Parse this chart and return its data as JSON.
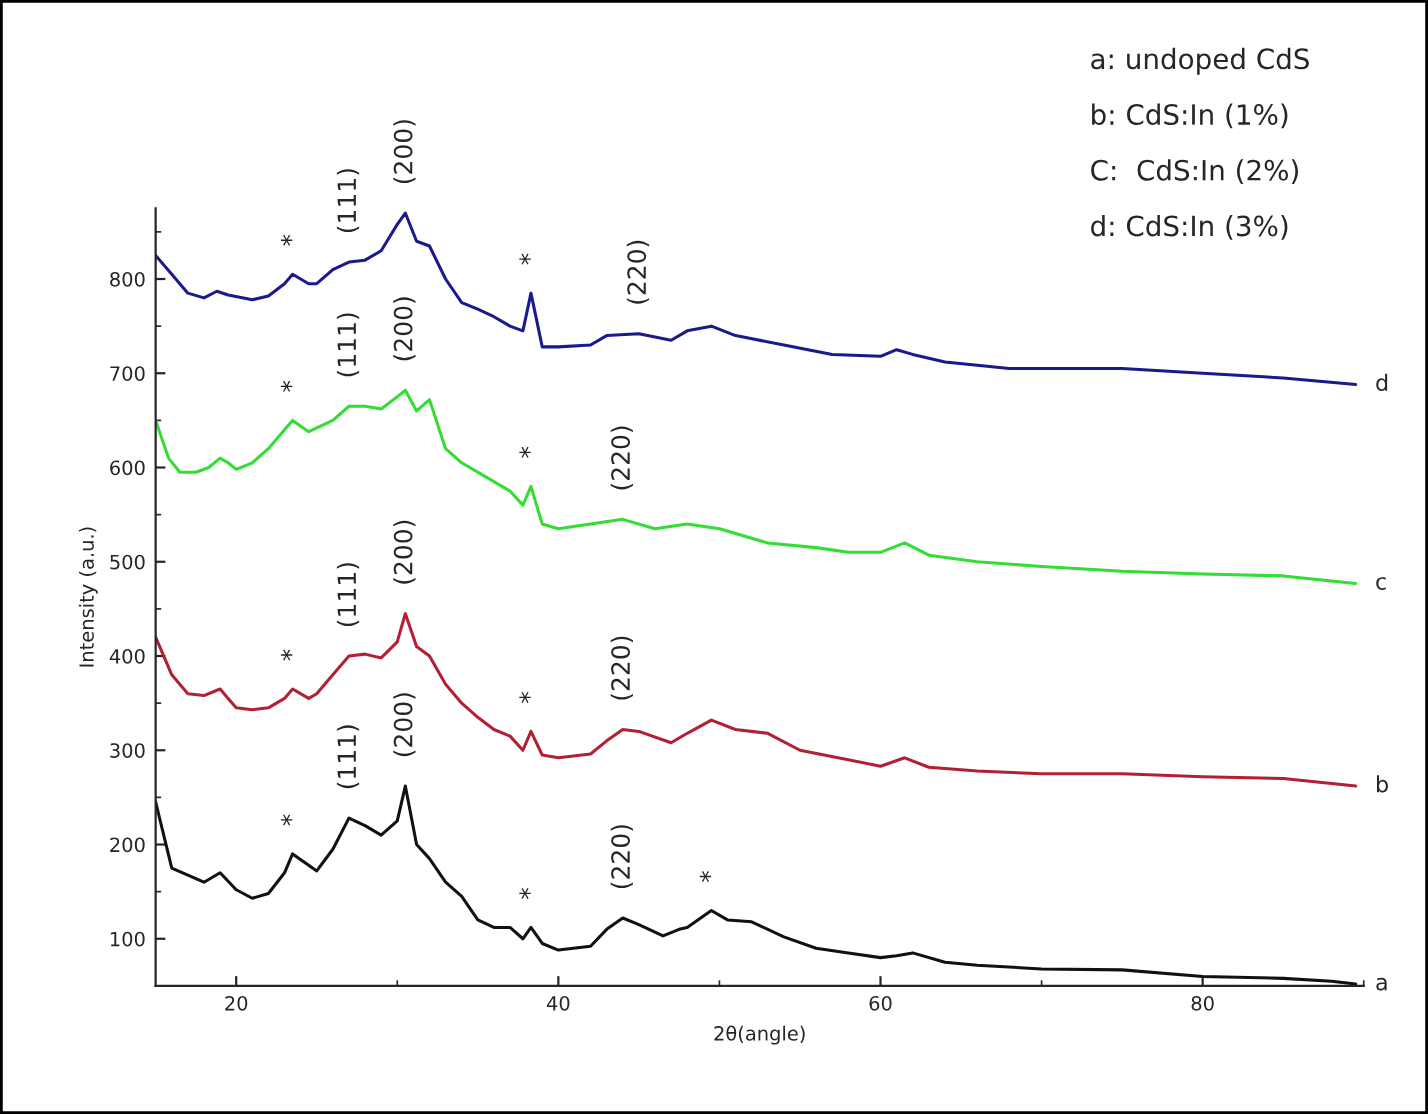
{
  "chart_data": {
    "type": "line",
    "xlabel": "2θ(angle)",
    "ylabel": "Intensity (a.u.)",
    "xlim": [
      15,
      90
    ],
    "xticks": [
      20,
      40,
      60,
      80
    ],
    "ylim": [
      50,
      875
    ],
    "yticks": [
      100,
      200,
      300,
      400,
      500,
      600,
      700,
      800
    ],
    "grid": false,
    "legend": false,
    "marker": "none",
    "line_style": "solid",
    "series": [
      {
        "name": "a",
        "color": "#111111",
        "x": [
          15,
          16,
          18,
          19,
          20,
          21,
          22,
          23,
          23.5,
          24.5,
          25,
          26,
          27,
          28,
          29,
          30,
          30.5,
          31.2,
          32,
          33,
          34,
          35,
          36,
          37,
          37.8,
          38.3,
          39,
          40,
          42,
          43,
          44,
          45,
          46.5,
          47.5,
          48,
          49.5,
          50.5,
          52,
          54,
          56,
          58,
          60,
          61,
          62,
          64,
          66,
          70,
          75,
          80,
          85,
          88,
          89.5
        ],
        "values": [
          245,
          175,
          160,
          170,
          152,
          143,
          148,
          170,
          190,
          178,
          172,
          195,
          228,
          220,
          210,
          225,
          262,
          200,
          185,
          160,
          145,
          120,
          112,
          112,
          100,
          112,
          95,
          88,
          92,
          110,
          122,
          115,
          103,
          110,
          112,
          130,
          120,
          118,
          102,
          90,
          85,
          80,
          82,
          85,
          75,
          72,
          68,
          67,
          60,
          58,
          55,
          52
        ]
      },
      {
        "name": "b",
        "color": "#b22034",
        "x": [
          15,
          16,
          17,
          18,
          19,
          19.5,
          20,
          21,
          22,
          23,
          23.5,
          24.5,
          25,
          26,
          27,
          28,
          29,
          30,
          30.5,
          31.2,
          32,
          33,
          34,
          35,
          36,
          37,
          37.8,
          38.3,
          39,
          40,
          42,
          43,
          44,
          45,
          47,
          48,
          49.5,
          51,
          53,
          55,
          58,
          60,
          61.5,
          63,
          66,
          70,
          75,
          80,
          85,
          89.5
        ],
        "values": [
          420,
          380,
          360,
          358,
          365,
          355,
          345,
          343,
          345,
          355,
          365,
          355,
          360,
          380,
          400,
          402,
          398,
          415,
          445,
          410,
          400,
          370,
          350,
          335,
          322,
          315,
          300,
          320,
          295,
          292,
          296,
          310,
          322,
          320,
          308,
          318,
          332,
          322,
          318,
          300,
          290,
          283,
          292,
          282,
          278,
          275,
          275,
          272,
          270,
          262
        ]
      },
      {
        "name": "c",
        "color": "#33dd33",
        "x": [
          15,
          15.8,
          16.5,
          17.5,
          18.3,
          19,
          19.5,
          20,
          21,
          22,
          23,
          23.5,
          24.5,
          26,
          27,
          28,
          29,
          30,
          30.5,
          31.2,
          32,
          33,
          34,
          36,
          37,
          37.8,
          38.3,
          39,
          40,
          42,
          44,
          46,
          48,
          50,
          53,
          56,
          58,
          60,
          61.5,
          63,
          66,
          70,
          75,
          80,
          85,
          89.5
        ],
        "values": [
          650,
          610,
          595,
          595,
          600,
          610,
          605,
          598,
          605,
          620,
          640,
          650,
          638,
          650,
          665,
          665,
          662,
          675,
          682,
          660,
          672,
          620,
          605,
          585,
          575,
          560,
          580,
          540,
          535,
          540,
          545,
          535,
          540,
          535,
          520,
          515,
          510,
          510,
          520,
          507,
          500,
          495,
          490,
          487,
          485,
          477
        ]
      },
      {
        "name": "d",
        "color": "#1a1a8c",
        "x": [
          15,
          16,
          17,
          18,
          18.8,
          19.5,
          21,
          22,
          23,
          23.5,
          24.5,
          25,
          26,
          27,
          28,
          29,
          30,
          30.5,
          31.2,
          32,
          33,
          34,
          35,
          36,
          37,
          37.8,
          38.3,
          39,
          40,
          42,
          43,
          45,
          47,
          48,
          49.5,
          51,
          54,
          57,
          60,
          61,
          62,
          64,
          68,
          72,
          75,
          80,
          85,
          89.5
        ],
        "values": [
          825,
          805,
          785,
          780,
          787,
          783,
          778,
          782,
          795,
          805,
          795,
          795,
          810,
          818,
          820,
          830,
          858,
          870,
          840,
          835,
          800,
          775,
          768,
          760,
          750,
          745,
          785,
          728,
          728,
          730,
          740,
          742,
          735,
          745,
          750,
          740,
          730,
          720,
          718,
          725,
          720,
          712,
          705,
          705,
          705,
          700,
          695,
          688
        ]
      }
    ],
    "annotations": [
      "a: undoped CdS",
      "b: CdS:In (1%)",
      "C:  CdS:In (2%)",
      "d: CdS:In (3%)",
      {
        "text": "*",
        "x": 23.5,
        "y": 190
      },
      {
        "text": "(111)",
        "x": 27,
        "y": 228
      },
      {
        "text": "(200)",
        "x": 30.5,
        "y": 262
      },
      {
        "text": "*",
        "x": 38.3,
        "y": 112
      },
      {
        "text": "(220)",
        "x": 44,
        "y": 122
      },
      {
        "text": "*",
        "x": 49.5,
        "y": 130
      },
      {
        "text": "*",
        "x": 23.5,
        "y": 365
      },
      {
        "text": "(111)",
        "x": 27,
        "y": 400
      },
      {
        "text": "(200)",
        "x": 30.5,
        "y": 445
      },
      {
        "text": "*",
        "x": 38.3,
        "y": 320
      },
      {
        "text": "(220)",
        "x": 44,
        "y": 322
      },
      {
        "text": "*",
        "x": 23.5,
        "y": 650
      },
      {
        "text": "(111)",
        "x": 27,
        "y": 665
      },
      {
        "text": "(200)",
        "x": 30.5,
        "y": 682
      },
      {
        "text": "*",
        "x": 38.3,
        "y": 580
      },
      {
        "text": "(220)",
        "x": 44,
        "y": 545
      },
      {
        "text": "*",
        "x": 23.5,
        "y": 805
      },
      {
        "text": "(111)",
        "x": 27,
        "y": 818
      },
      {
        "text": "(200)",
        "x": 30.5,
        "y": 870
      },
      {
        "text": "*",
        "x": 38.3,
        "y": 785
      },
      {
        "text": "(220)",
        "x": 45,
        "y": 742
      }
    ]
  }
}
